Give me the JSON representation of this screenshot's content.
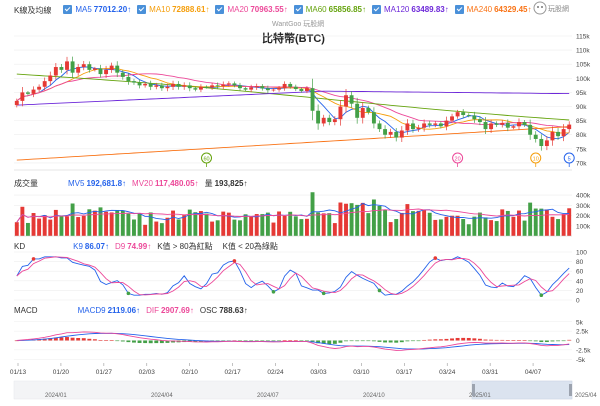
{
  "header": {
    "watermark": "WantGoo 玩股網",
    "title": "比特幣(BTC)",
    "logo": "玩股網"
  },
  "legends": {
    "kline": {
      "label": "K線及均線",
      "items": [
        {
          "name": "MA5",
          "value": "77012.20↑",
          "color": "#2563eb"
        },
        {
          "name": "MA10",
          "value": "72888.61↑",
          "color": "#f59e0b"
        },
        {
          "name": "MA20",
          "value": "70963.55↑",
          "color": "#ec4899"
        },
        {
          "name": "MA60",
          "value": "65856.85↑",
          "color": "#65a30d"
        },
        {
          "name": "MA120",
          "value": "63489.83↑",
          "color": "#6d28d9"
        },
        {
          "name": "MA240",
          "value": "64329.45↑",
          "color": "#f97316"
        }
      ]
    },
    "volume": {
      "label": "成交量",
      "items": [
        {
          "name": "MV5",
          "value": "192,681.8↑",
          "color": "#2563eb"
        },
        {
          "name": "MV20",
          "value": "117,480.05↑",
          "color": "#ec4899"
        },
        {
          "name": "量",
          "value": "193,825↑",
          "color": "#333333"
        }
      ]
    },
    "kd": {
      "label": "KD",
      "items": [
        {
          "name": "K9",
          "value": "86.07↑",
          "color": "#2563eb"
        },
        {
          "name": "D9",
          "value": "74.99↑",
          "color": "#ec4899"
        }
      ],
      "notes": [
        "K值 > 80為紅點",
        "K值 < 20為綠點"
      ]
    },
    "macd": {
      "label": "MACD",
      "items": [
        {
          "name": "MACD9",
          "value": "2119.06↑",
          "color": "#2563eb"
        },
        {
          "name": "DIF",
          "value": "2907.69↑",
          "color": "#ec4899"
        },
        {
          "name": "OSC",
          "value": "788.63↑",
          "color": "#333333"
        }
      ]
    }
  },
  "chart_data": {
    "type": "candlestick",
    "price_axis": {
      "ticks": [
        "115k",
        "110k",
        "105k",
        "100k",
        "95k",
        "90k",
        "85k",
        "80k",
        "75k",
        "70k"
      ],
      "range": [
        67500,
        115000
      ]
    },
    "volume_axis": {
      "ticks": [
        "400k",
        "300k",
        "200k",
        "100k"
      ],
      "range": [
        0,
        450000
      ]
    },
    "kd_axis": {
      "ticks": [
        "100",
        "80",
        "60",
        "40",
        "20",
        "0"
      ],
      "range": [
        0,
        100
      ]
    },
    "macd_axis": {
      "ticks": [
        "5k",
        "2.5k",
        "0",
        "-2.5k",
        "-5k"
      ],
      "range": [
        -6000,
        6000
      ]
    },
    "x_ticks": [
      "01/13",
      "01/20",
      "01/27",
      "02/03",
      "02/10",
      "02/17",
      "02/24",
      "03/03",
      "03/10",
      "03/17",
      "03/24",
      "03/31",
      "04/07"
    ],
    "timeline": [
      "2024/01",
      "2024/04",
      "2024/07",
      "2024/10",
      "2025/01",
      "2025/04"
    ],
    "markers": [
      {
        "label": "60",
        "index": 34,
        "color": "#65a30d"
      },
      {
        "label": "20",
        "index": 79,
        "color": "#ec4899"
      },
      {
        "label": "10",
        "index": 93,
        "color": "#f59e0b"
      },
      {
        "label": "5",
        "index": 99,
        "color": "#2563eb"
      }
    ],
    "closes": [
      92000,
      95000,
      94500,
      96000,
      97000,
      99000,
      101000,
      104000,
      103000,
      106000,
      102000,
      104000,
      105000,
      103000,
      103500,
      101500,
      103000,
      104500,
      102000,
      100500,
      99000,
      98500,
      97500,
      98000,
      97000,
      97500,
      96500,
      97000,
      98000,
      97000,
      97500,
      96500,
      96000,
      97000,
      96800,
      97500,
      97200,
      97800,
      98200,
      97500,
      96500,
      96000,
      96800,
      97200,
      96400,
      95800,
      96000,
      96500,
      98000,
      97000,
      96200,
      95500,
      96500,
      88500,
      84000,
      86000,
      84500,
      85500,
      90000,
      94000,
      91000,
      86000,
      89500,
      88000,
      84000,
      82000,
      80000,
      81000,
      79000,
      81500,
      84000,
      82000,
      82500,
      84000,
      83500,
      84000,
      83000,
      85000,
      86500,
      88000,
      87000,
      86800,
      85500,
      84500,
      82000,
      84000,
      83500,
      84200,
      82500,
      83000,
      84500,
      83500,
      80000,
      78500,
      76000,
      78000,
      81000,
      79500,
      82000,
      83600
    ]
  }
}
